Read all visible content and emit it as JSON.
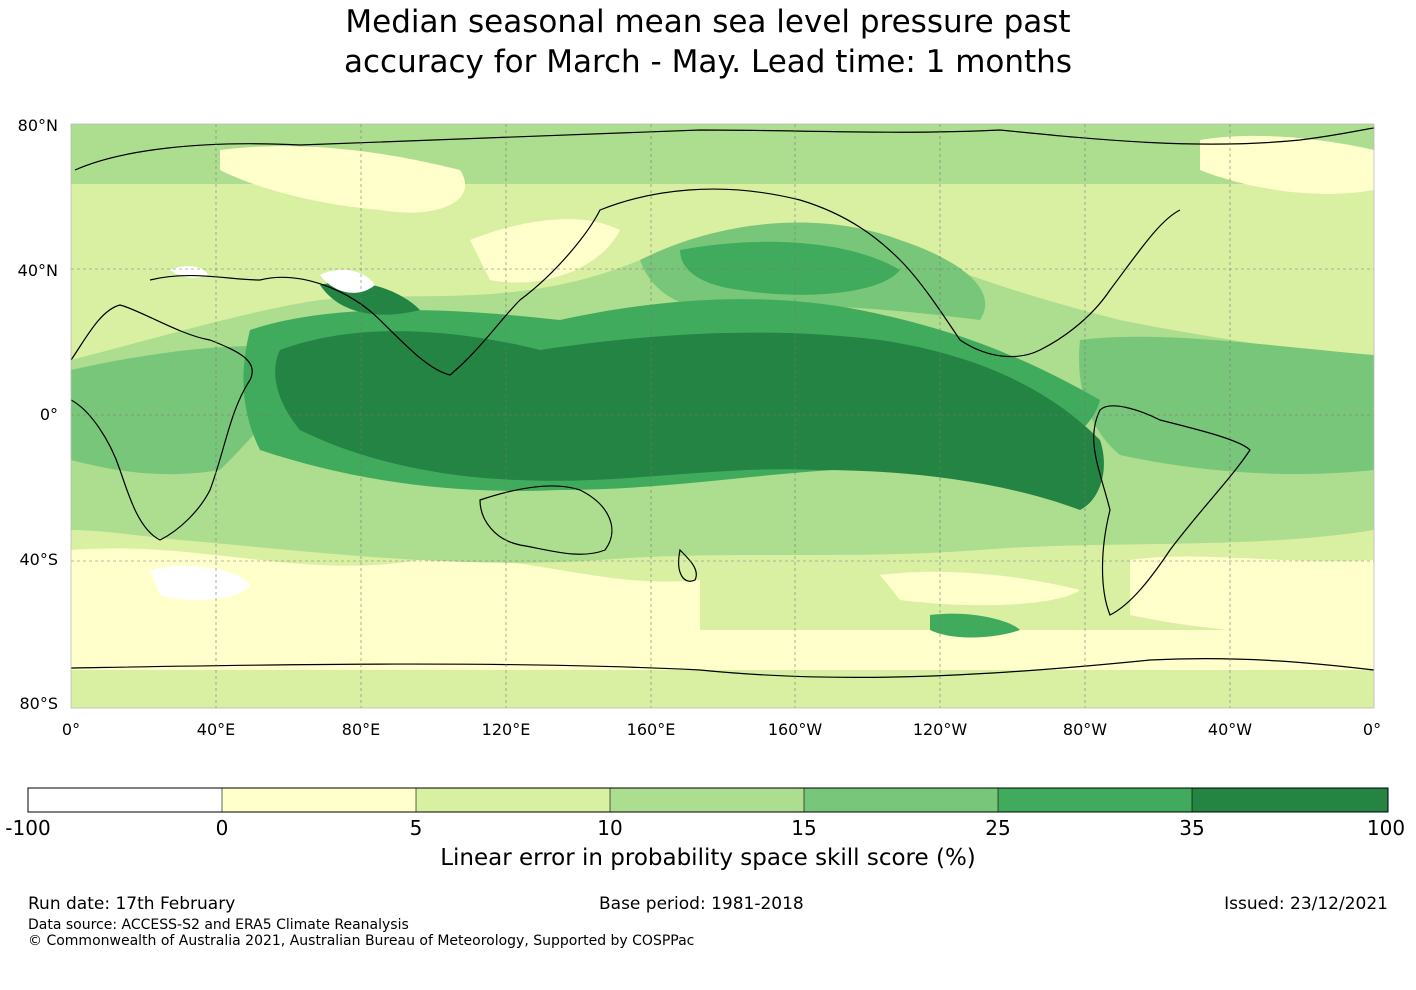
{
  "title": {
    "line1": "Median seasonal mean sea level pressure past",
    "line2": "accuracy for March - May. Lead time: 1 months"
  },
  "map": {
    "lat_labels": [
      "80°N",
      "40°N",
      "0°",
      "40°S",
      "80°S"
    ],
    "lon_labels": [
      "0°",
      "40°E",
      "80°E",
      "120°E",
      "160°E",
      "160°W",
      "120°W",
      "80°W",
      "40°W",
      "0°"
    ],
    "palette": {
      "neg": "#ffffff",
      "c0_5": "#ffffcc",
      "c5_10": "#d9f0a3",
      "c10_15": "#addd8e",
      "c15_25": "#78c679",
      "c25_35": "#41ab5d",
      "c35_100": "#238443",
      "coast": "#000000",
      "grid": "#555555"
    }
  },
  "colorbar": {
    "ticks": [
      "-100",
      "0",
      "5",
      "10",
      "15",
      "25",
      "35",
      "100"
    ],
    "colors": [
      "#ffffff",
      "#ffffcc",
      "#d9f0a3",
      "#addd8e",
      "#78c679",
      "#41ab5d",
      "#238443"
    ],
    "label": "Linear error in probability space skill score (%)"
  },
  "footer": {
    "run_date": "Run date: 17th February",
    "base_period": "Base period: 1981-2018",
    "issued": "Issued: 23/12/2021",
    "data_source": "Data source: ACCESS-S2 and ERA5 Climate Reanalysis",
    "copyright": "© Commonwealth of Australia 2021, Australian Bureau of Meteorology, Supported by COSPPac"
  }
}
